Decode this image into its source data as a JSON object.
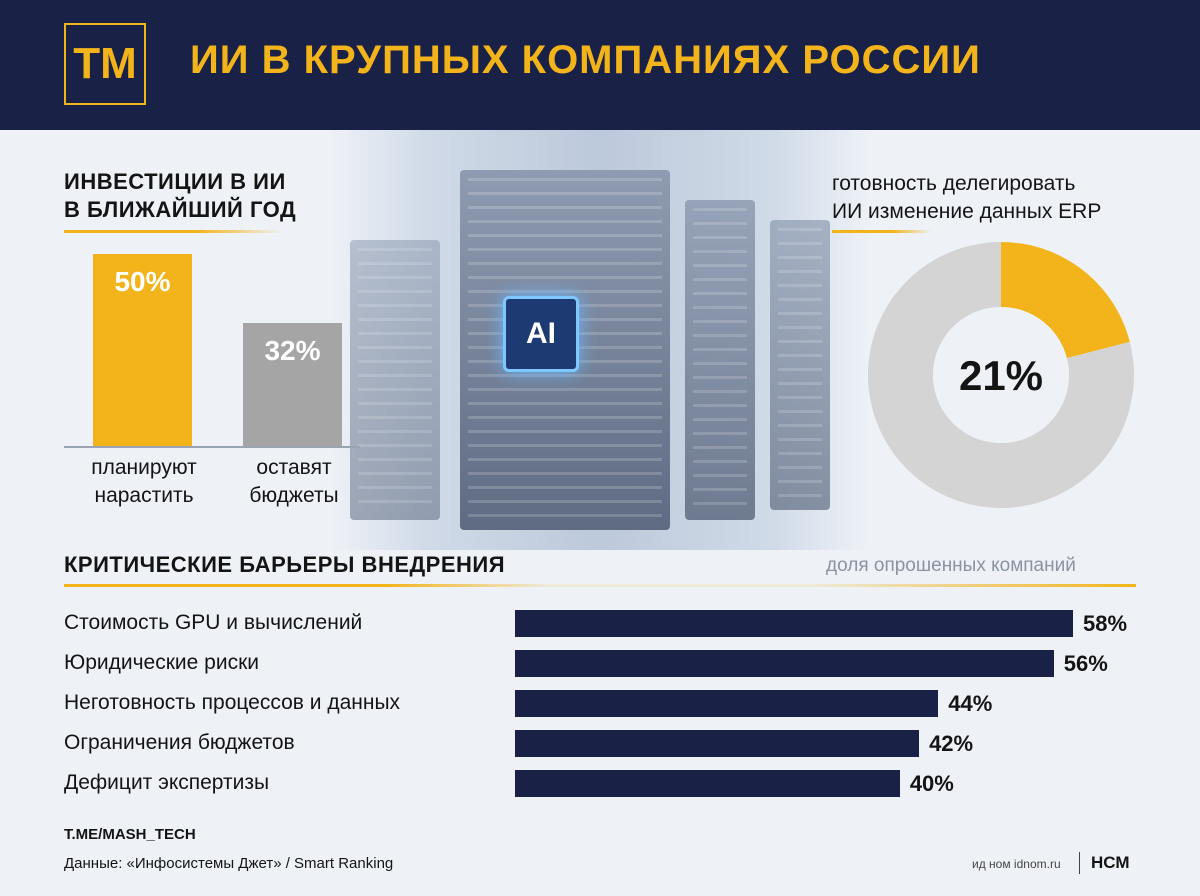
{
  "header": {
    "logo_text": "ТМ",
    "title": "ИИ В КРУПНЫХ КОМПАНИЯХ РОССИИ"
  },
  "illustration": {
    "chip_label": "AI"
  },
  "investments": {
    "title_line1": "ИНВЕСТИЦИИ В ИИ",
    "title_line2": "В БЛИЖАЙШИЙ ГОД",
    "bars": [
      {
        "value_label": "50%",
        "caption_line1": "планируют",
        "caption_line2": "нарастить"
      },
      {
        "value_label": "32%",
        "caption_line1": "оставят",
        "caption_line2": "бюджеты"
      }
    ]
  },
  "erp": {
    "title_line1": "готовность делегировать",
    "title_line2": "ИИ изменение данных ERP",
    "value_label": "21%"
  },
  "barriers": {
    "title": "КРИТИЧЕСКИЕ БАРЬЕРЫ ВНЕДРЕНИЯ",
    "subtitle": "доля опрошенных компаний",
    "rows": [
      {
        "label": "Стоимость GPU и вычислений",
        "value_label": "58%"
      },
      {
        "label": "Юридические риски",
        "value_label": "56%"
      },
      {
        "label": "Неготовность процессов и данных",
        "value_label": "44%"
      },
      {
        "label": "Ограничения бюджетов",
        "value_label": "42%"
      },
      {
        "label": "Дефицит экспертизы",
        "value_label": "40%"
      }
    ]
  },
  "footer": {
    "channel": "T.ME/MASH_TECH",
    "source": "Данные: «Инфосистемы Джет» / Smart Ranking",
    "credit": "ид ном idnom.ru",
    "brand": "НСМ"
  },
  "colors": {
    "navy": "#1a2147",
    "gold": "#f2b41a",
    "grey": "#a5a5a5",
    "light_grey": "#d4d4d4"
  },
  "chart_data": [
    {
      "type": "bar",
      "title": "ИНВЕСТИЦИИ В ИИ В БЛИЖАЙШИЙ ГОД",
      "categories": [
        "планируют нарастить",
        "оставят бюджеты"
      ],
      "values": [
        50,
        32
      ],
      "colors": [
        "#f2b41a",
        "#a5a5a5"
      ],
      "ylim": [
        0,
        50
      ]
    },
    {
      "type": "pie",
      "title": "готовность делегировать ИИ изменение данных ERP",
      "donut": true,
      "values": [
        21,
        79
      ],
      "colors": [
        "#f2b41a",
        "#d4d4d4"
      ]
    },
    {
      "type": "bar",
      "orientation": "horizontal",
      "title": "КРИТИЧЕСКИЕ БАРЬЕРЫ ВНЕДРЕНИЯ",
      "subtitle": "доля опрошенных компаний",
      "categories": [
        "Стоимость GPU и вычислений",
        "Юридические риски",
        "Неготовность процессов и данных",
        "Ограничения бюджетов",
        "Дефицит экспертизы"
      ],
      "values": [
        58,
        56,
        44,
        42,
        40
      ],
      "xlim": [
        0,
        58
      ]
    }
  ]
}
